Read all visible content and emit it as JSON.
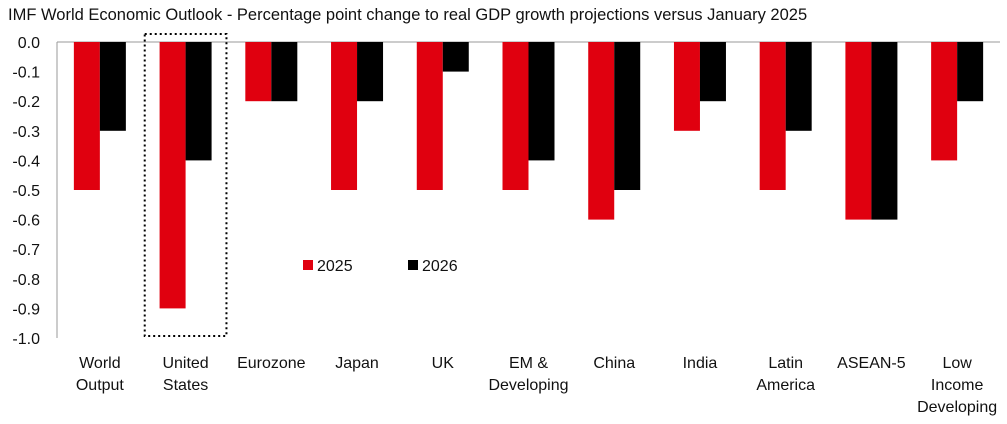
{
  "chart_data": {
    "type": "bar",
    "title": "IMF World Economic Outlook - Percentage point change to real GDP growth projections versus January 2025",
    "xlabel": "",
    "ylabel": "",
    "ylim": [
      -1.0,
      0.0
    ],
    "yticks": [
      "0.0",
      "-0.1",
      "-0.2",
      "-0.3",
      "-0.4",
      "-0.5",
      "-0.6",
      "-0.7",
      "-0.8",
      "-0.9",
      "-1.0"
    ],
    "ytick_values": [
      0,
      -0.1,
      -0.2,
      -0.3,
      -0.4,
      -0.5,
      -0.6,
      -0.7,
      -0.8,
      -0.9,
      -1.0
    ],
    "grid": false,
    "categories": [
      [
        "World",
        "Output"
      ],
      [
        "United",
        "States"
      ],
      [
        "Eurozone"
      ],
      [
        "Japan"
      ],
      [
        "UK"
      ],
      [
        "EM &",
        "Developing"
      ],
      [
        "China"
      ],
      [
        "India"
      ],
      [
        "Latin",
        "America"
      ],
      [
        "ASEAN-5"
      ],
      [
        "Low",
        "Income",
        "Developing"
      ]
    ],
    "series": [
      {
        "name": "2025",
        "color": "#e0000f",
        "values": [
          -0.5,
          -0.9,
          -0.2,
          -0.5,
          -0.5,
          -0.5,
          -0.6,
          -0.3,
          -0.5,
          -0.6,
          -0.4
        ]
      },
      {
        "name": "2026",
        "color": "#000000",
        "values": [
          -0.3,
          -0.4,
          -0.2,
          -0.2,
          -0.1,
          -0.4,
          -0.5,
          -0.2,
          -0.3,
          -0.6,
          -0.2
        ]
      }
    ],
    "legend_position": "center-left",
    "highlight": {
      "category": "United States",
      "style": "dotted-box"
    }
  }
}
